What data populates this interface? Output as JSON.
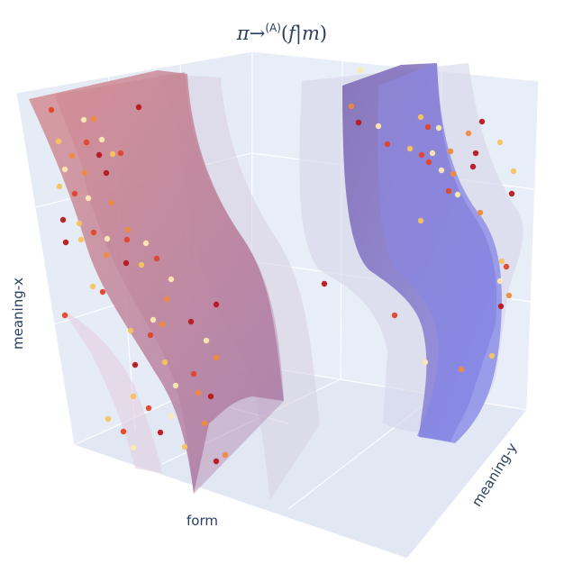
{
  "title": {
    "pi": "π",
    "arrow": "→",
    "superscript": "(A)",
    "open": "(",
    "f": "f",
    "bar": "|",
    "m": "m",
    "close": ")"
  },
  "axes": {
    "x_label": "form",
    "y_label": "meaning-x",
    "z_label": "meaning-y"
  },
  "colors": {
    "scene_background": "#e5ecf6",
    "grid": "#ffffff",
    "axis_text": "#2a3f5f",
    "sheet_red": "#c0737f",
    "sheet_purple": "#8a76c4",
    "sheet_blue": "#8e8ee8",
    "sheet_ghost": "#d9d6e6",
    "points_scale": [
      "#fde9b0",
      "#f6c360",
      "#ef8a3c",
      "#e0452c",
      "#b8161e"
    ]
  },
  "surfaces": [
    {
      "name": "red sheet front",
      "color_role": "sheet_red",
      "opacity": 0.75
    },
    {
      "name": "red sheet back",
      "color_role": "sheet_red",
      "opacity": 0.45
    },
    {
      "name": "pink ghost sheet",
      "color_role": "sheet_ghost",
      "opacity": 0.55
    },
    {
      "name": "lavender ghost sheet",
      "color_role": "sheet_ghost",
      "opacity": 0.55
    },
    {
      "name": "purple sheet",
      "color_role": "sheet_purple",
      "opacity": 0.8
    },
    {
      "name": "blue sheet",
      "color_role": "sheet_blue",
      "opacity": 0.75
    }
  ]
}
